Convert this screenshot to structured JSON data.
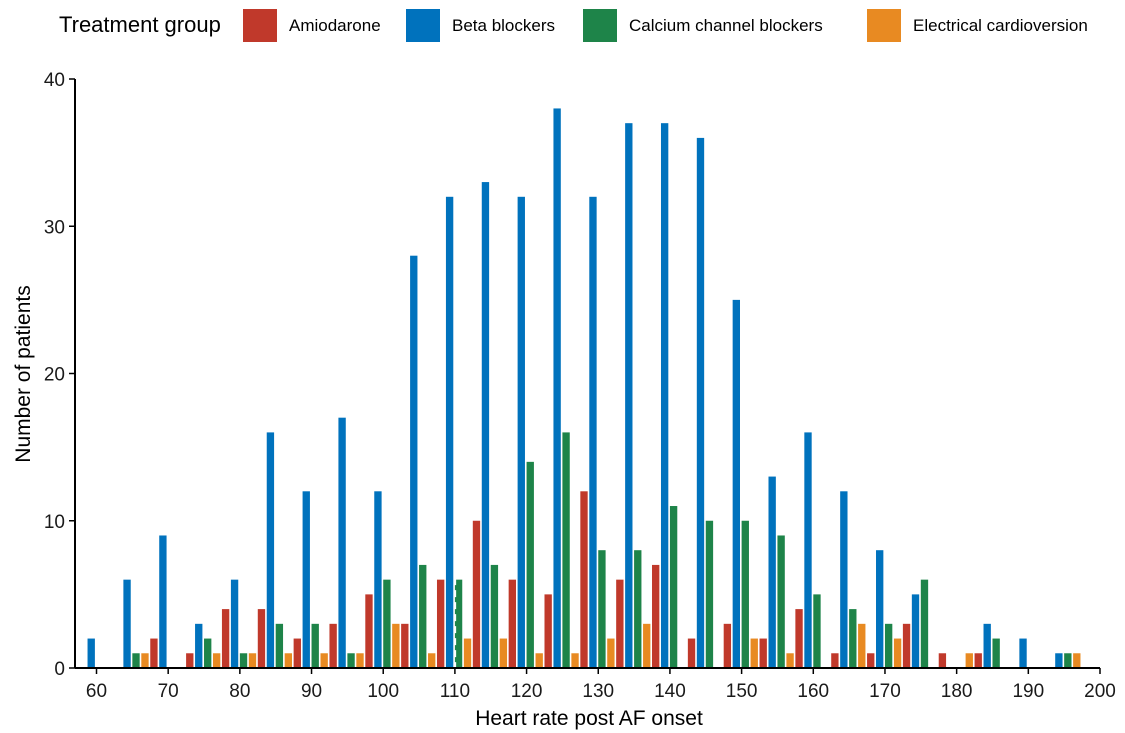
{
  "chart_data": {
    "type": "bar",
    "xlabel": "Heart rate post AF onset",
    "ylabel": "Number of patients",
    "xlim": [
      57,
      200
    ],
    "ylim": [
      0,
      40
    ],
    "x_ticks": [
      60,
      70,
      80,
      90,
      100,
      110,
      120,
      130,
      140,
      150,
      160,
      170,
      180,
      190,
      200
    ],
    "y_ticks": [
      0,
      10,
      20,
      30,
      40
    ],
    "bin_width": 5,
    "reference_line_x": 110,
    "grid": false,
    "legend": {
      "title": "Treatment group",
      "position": "top"
    },
    "bins": [
      60,
      65,
      70,
      75,
      80,
      85,
      90,
      95,
      100,
      105,
      110,
      115,
      120,
      125,
      130,
      135,
      140,
      145,
      150,
      155,
      160,
      165,
      170,
      175,
      180,
      185,
      190,
      195
    ],
    "series": [
      {
        "name": "Amiodarone",
        "color": "#C0392B",
        "values": [
          0,
          0,
          2,
          1,
          4,
          4,
          2,
          3,
          5,
          3,
          6,
          10,
          6,
          5,
          12,
          6,
          7,
          2,
          3,
          2,
          4,
          1,
          1,
          3,
          1,
          1,
          0,
          0
        ]
      },
      {
        "name": "Beta blockers",
        "color": "#0072BD",
        "values": [
          2,
          6,
          9,
          3,
          6,
          16,
          12,
          17,
          12,
          28,
          32,
          33,
          32,
          38,
          32,
          37,
          37,
          36,
          25,
          13,
          16,
          12,
          8,
          5,
          0,
          3,
          2,
          1
        ]
      },
      {
        "name": "Calcium channel blockers",
        "color": "#1E8449",
        "values": [
          0,
          1,
          0,
          2,
          1,
          3,
          3,
          1,
          6,
          7,
          6,
          7,
          14,
          16,
          8,
          8,
          11,
          10,
          10,
          9,
          5,
          4,
          3,
          6,
          0,
          2,
          0,
          1
        ]
      },
      {
        "name": "Electrical cardioversion",
        "color": "#E88A22",
        "values": [
          0,
          1,
          0,
          1,
          1,
          1,
          1,
          1,
          3,
          1,
          2,
          2,
          1,
          1,
          2,
          3,
          0,
          0,
          2,
          1,
          0,
          3,
          2,
          0,
          1,
          0,
          0,
          1
        ]
      }
    ]
  }
}
